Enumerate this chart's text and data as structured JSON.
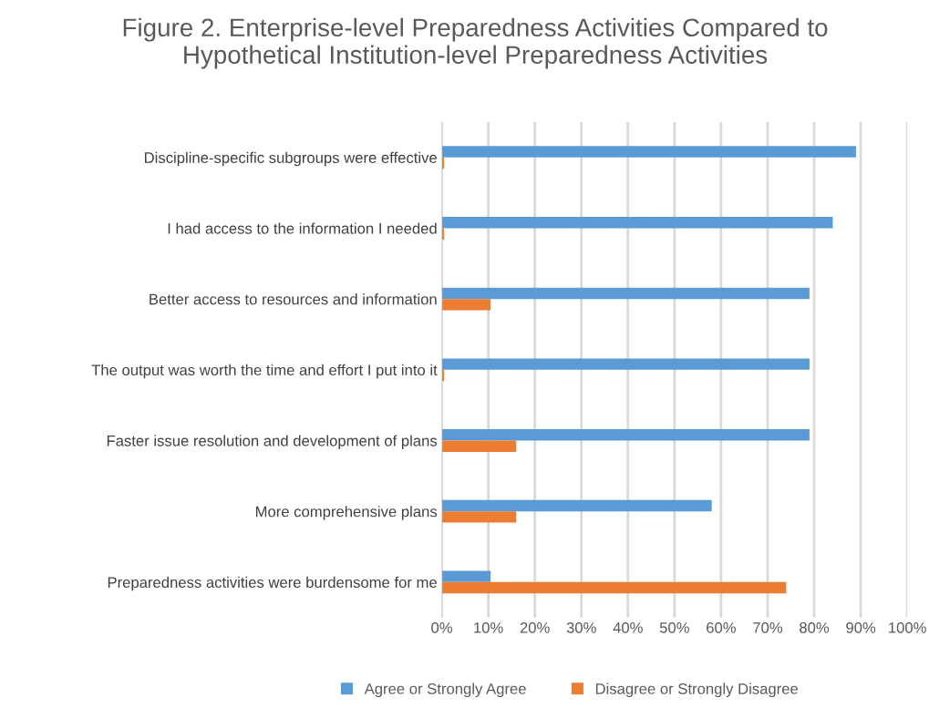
{
  "chart_data": {
    "type": "bar",
    "orientation": "horizontal",
    "title": "Figure 2. Enterprise-level Preparedness Activities Compared to\nHypothetical Institution-level Preparedness Activities",
    "categories": [
      "Discipline-specific subgroups were effective",
      "I had access to the information I needed",
      "Better access to resources and information",
      "The output was worth the time and effort I put into it",
      "Faster issue resolution and development of plans",
      "More comprehensive plans",
      "Preparedness activities were burdensome for me"
    ],
    "series": [
      {
        "name": "Agree or Strongly Agree",
        "color": "#5b9bd5",
        "values": [
          89,
          84,
          79,
          79,
          79,
          58,
          10.5
        ]
      },
      {
        "name": "Disagree or Strongly Disagree",
        "color": "#ed7d31",
        "values": [
          0.5,
          0.5,
          10.5,
          0.5,
          16,
          16,
          74
        ]
      }
    ],
    "xlim": [
      0,
      100
    ],
    "xticks": [
      {
        "value": 0,
        "label": "0%"
      },
      {
        "value": 10,
        "label": "10%"
      },
      {
        "value": 20,
        "label": "20%"
      },
      {
        "value": 30,
        "label": "30%"
      },
      {
        "value": 40,
        "label": "40%"
      },
      {
        "value": 50,
        "label": "50%"
      },
      {
        "value": 60,
        "label": "60%"
      },
      {
        "value": 70,
        "label": "70%"
      },
      {
        "value": 80,
        "label": "80%"
      },
      {
        "value": 90,
        "label": "90%"
      },
      {
        "value": 100,
        "label": "100%"
      }
    ],
    "grid": "x",
    "legend": "bottom"
  }
}
